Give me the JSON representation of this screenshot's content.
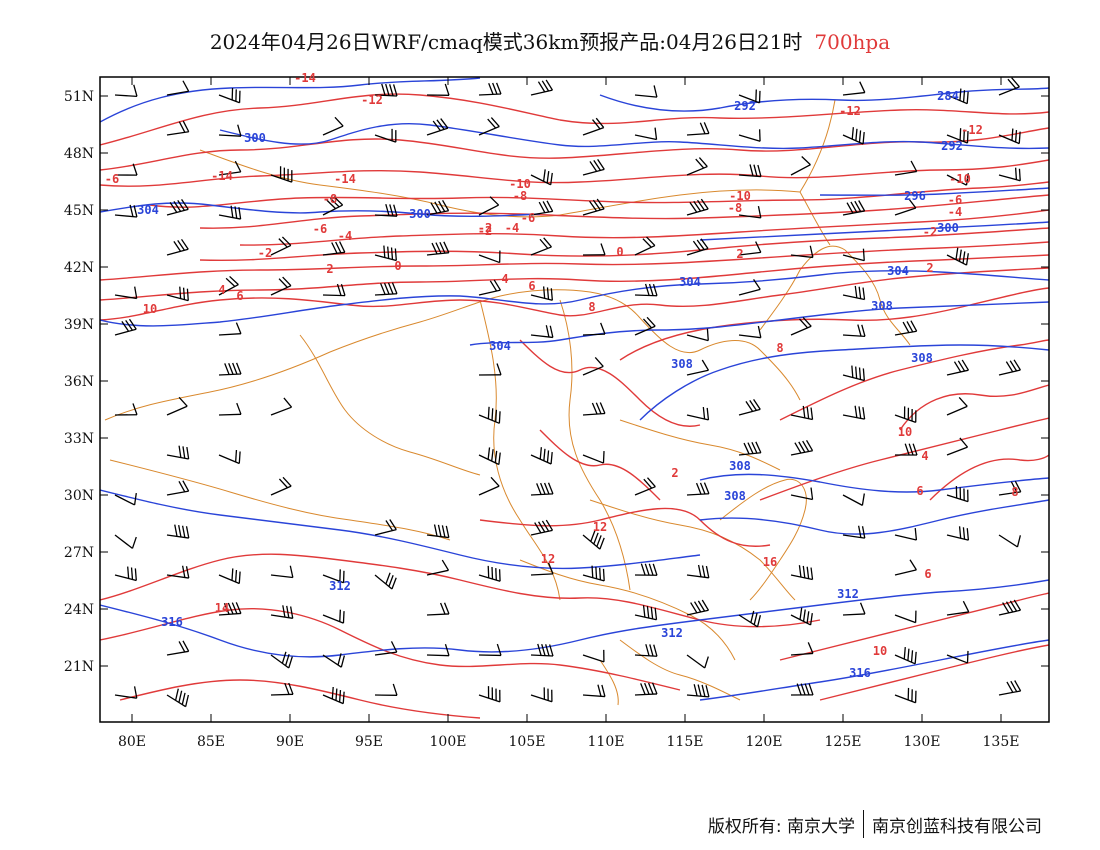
{
  "title": {
    "main": "2024年04月26日WRF/cmaq模式36km预报产品:04月26日21时",
    "level": "700hpa"
  },
  "axes": {
    "lat_labels": [
      "51N",
      "48N",
      "45N",
      "42N",
      "39N",
      "36N",
      "33N",
      "30N",
      "27N",
      "24N",
      "21N"
    ],
    "lon_labels": [
      "80E",
      "85E",
      "90E",
      "95E",
      "100E",
      "105E",
      "110E",
      "115E",
      "120E",
      "125E",
      "130E",
      "135E"
    ]
  },
  "colors": {
    "temperature": "#e03a3a",
    "height": "#2a44d8",
    "border": "#d9892e",
    "wind": "#000000"
  },
  "temp_labels": [
    "-14",
    "-12",
    "-12",
    "-14",
    "-14",
    "-12",
    "-10",
    "-8",
    "-6",
    "-4",
    "-2",
    "0",
    "2",
    "4",
    "6",
    "8",
    "10",
    "12",
    "14",
    "-6",
    "-10",
    "-8",
    "-6",
    "-4",
    "-2",
    "0",
    "2",
    "4",
    "6",
    "8",
    "10",
    "12",
    "16",
    "-10",
    "-8",
    "-6",
    "-4",
    "-2",
    "2",
    "-2",
    "4",
    "6",
    "8",
    "6",
    "2",
    "10"
  ],
  "height_labels": [
    "292",
    "284",
    "300",
    "292",
    "296",
    "304",
    "300",
    "300",
    "304",
    "304",
    "304",
    "308",
    "308",
    "308",
    "308",
    "308",
    "312",
    "312",
    "312",
    "316",
    "316"
  ],
  "footer": {
    "left": "版权所有: 南京大学",
    "right": "南京创蓝科技有限公司"
  }
}
